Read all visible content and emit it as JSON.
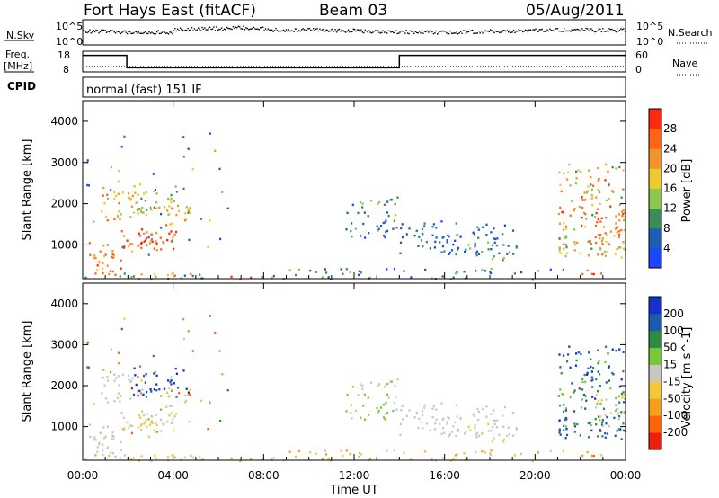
{
  "header": {
    "station": "Fort Hays East (fitACF)",
    "beam": "Beam 03",
    "date": "05/Aug/2011"
  },
  "strips": {
    "nsky_label": "N.Sky",
    "nsearch_label": "N.Search",
    "nsky_ticks": [
      "10^5",
      "10^0"
    ],
    "nsearch_ticks": [
      "10^5",
      "10^0"
    ],
    "freq_label": "Freq.",
    "freq_unit": "[MHz]",
    "freq_ticks": [
      "18",
      "8"
    ],
    "nave_label": "Nave",
    "nave_ticks": [
      "60",
      "0"
    ],
    "cpid_label": "CPID",
    "cpid_value": "normal (fast) 151 IF"
  },
  "chart_data": {
    "type": "heatmap",
    "x_ticks": [
      "00:00",
      "04:00",
      "08:00",
      "12:00",
      "16:00",
      "20:00",
      "00:00"
    ],
    "xlabel": "Time UT",
    "xlim_hours": [
      0,
      24
    ],
    "panels": [
      {
        "name": "power",
        "ylabel": "Slant Range [km]",
        "ylim": [
          180,
          4500
        ],
        "y_ticks": [
          1000,
          2000,
          3000,
          4000
        ],
        "colorbar": {
          "label": "Power [dB]",
          "ticks": [
            "4",
            "8",
            "12",
            "16",
            "20",
            "24",
            "28"
          ],
          "colors": [
            "#1e46ff",
            "#1d5fb3",
            "#3c8c5a",
            "#8cc850",
            "#f0c830",
            "#f09628",
            "#ff6414",
            "#ff2810"
          ]
        }
      },
      {
        "name": "velocity",
        "ylabel": "Slant Range [km]",
        "ylim": [
          180,
          4500
        ],
        "y_ticks": [
          1000,
          2000,
          3000,
          4000
        ],
        "colorbar": {
          "label": "Velocity [m s^-1]",
          "ticks": [
            "200",
            "100",
            "50",
            "15",
            "-15",
            "-50",
            "-100",
            "-200"
          ],
          "colors": [
            "#1432c8",
            "#1e5aaf",
            "#2d8c41",
            "#78c83c",
            "#c8c8c0",
            "#f5c83c",
            "#f5a019",
            "#ff640a",
            "#f01e0a"
          ]
        }
      }
    ],
    "frequency_mhz": [
      {
        "from_h": 0,
        "to_h": 1.95,
        "value": 16
      },
      {
        "from_h": 1.95,
        "to_h": 14,
        "value": 10
      },
      {
        "from_h": 14,
        "to_h": 24,
        "value": 16
      }
    ],
    "nave": 5
  }
}
